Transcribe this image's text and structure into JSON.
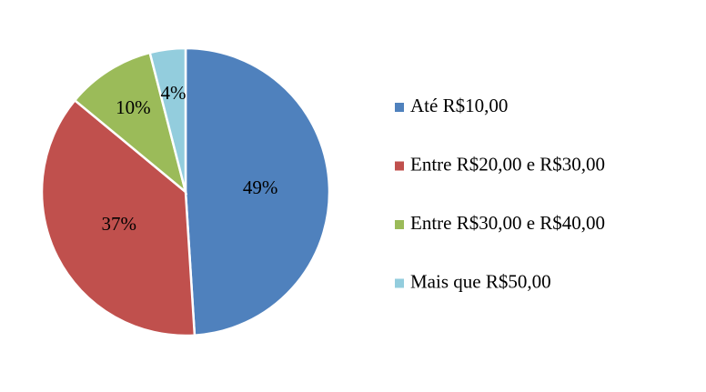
{
  "chart_data": {
    "type": "pie",
    "categories": [
      "Até R$10,00",
      "Entre R$20,00 e R$30,00",
      "Entre R$30,00 e R$40,00",
      "Mais que R$50,00"
    ],
    "values": [
      49,
      37,
      10,
      4
    ],
    "value_labels": [
      "49%",
      "37%",
      "10%",
      "4%"
    ],
    "colors": [
      "#4f81bd",
      "#c0504d",
      "#9bbb59",
      "#93cddd"
    ],
    "legend": "right"
  }
}
